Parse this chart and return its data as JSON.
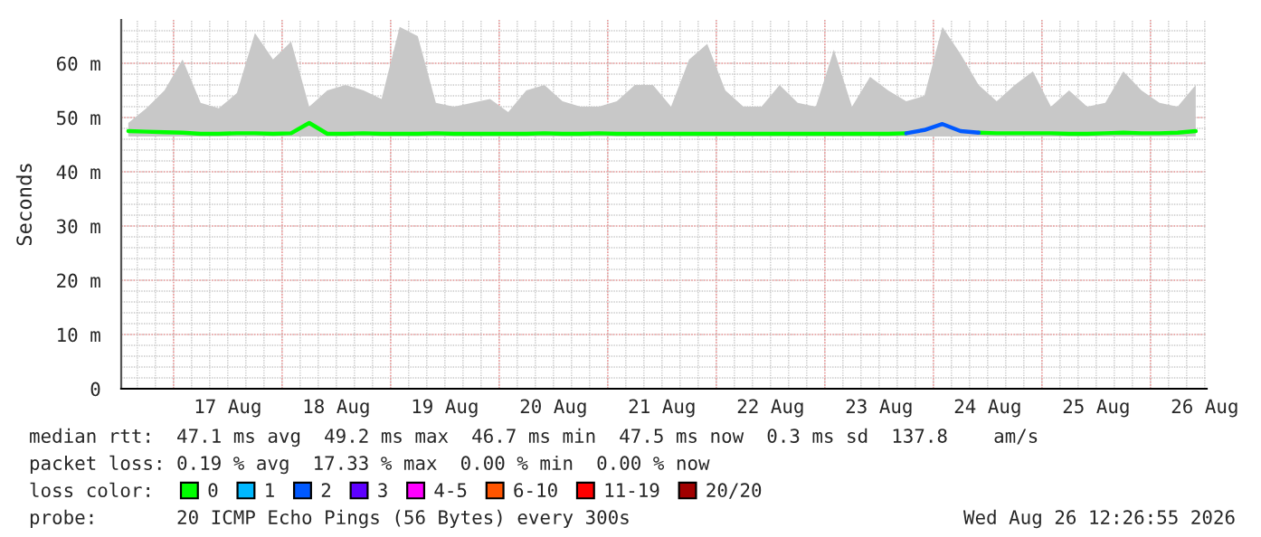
{
  "chart_data": {
    "type": "line",
    "ylabel": "Seconds",
    "x": [
      "2026-08-16T14:00",
      "2026-08-16T18:00",
      "2026-08-16T22:00",
      "2026-08-17T02:00",
      "2026-08-17T06:00",
      "2026-08-17T10:00",
      "2026-08-17T14:00",
      "2026-08-17T18:00",
      "2026-08-17T22:00",
      "2026-08-18T02:00",
      "2026-08-18T06:00",
      "2026-08-18T10:00",
      "2026-08-18T14:00",
      "2026-08-18T18:00",
      "2026-08-18T22:00",
      "2026-08-19T02:00",
      "2026-08-19T06:00",
      "2026-08-19T10:00",
      "2026-08-19T14:00",
      "2026-08-19T18:00",
      "2026-08-19T22:00",
      "2026-08-20T02:00",
      "2026-08-20T06:00",
      "2026-08-20T10:00",
      "2026-08-20T14:00",
      "2026-08-20T18:00",
      "2026-08-20T22:00",
      "2026-08-21T02:00",
      "2026-08-21T06:00",
      "2026-08-21T10:00",
      "2026-08-21T14:00",
      "2026-08-21T18:00",
      "2026-08-21T22:00",
      "2026-08-22T02:00",
      "2026-08-22T06:00",
      "2026-08-22T10:00",
      "2026-08-22T14:00",
      "2026-08-22T18:00",
      "2026-08-22T22:00",
      "2026-08-23T02:00",
      "2026-08-23T06:00",
      "2026-08-23T10:00",
      "2026-08-23T14:00",
      "2026-08-23T18:00",
      "2026-08-23T22:00",
      "2026-08-24T02:00",
      "2026-08-24T06:00",
      "2026-08-24T10:00",
      "2026-08-24T14:00",
      "2026-08-24T18:00",
      "2026-08-24T22:00",
      "2026-08-25T02:00",
      "2026-08-25T06:00",
      "2026-08-25T10:00",
      "2026-08-25T14:00",
      "2026-08-25T18:00",
      "2026-08-25T22:00",
      "2026-08-26T02:00",
      "2026-08-26T06:00",
      "2026-08-26T10:00"
    ],
    "series": [
      {
        "name": "0",
        "color": "#00ff00",
        "values": [
          47.5,
          47.4,
          47.3,
          47.2,
          47.0,
          47.0,
          47.1,
          47.1,
          47.0,
          47.1,
          49.0,
          47.0,
          47.0,
          47.1,
          47.0,
          47.0,
          47.0,
          47.1,
          47.0,
          47.0,
          47.0,
          47.0,
          47.0,
          47.1,
          47.0,
          47.0,
          47.1,
          47.0,
          47.0,
          47.0,
          47.0,
          47.0,
          47.0,
          47.0,
          47.0,
          47.0,
          47.0,
          47.0,
          47.0,
          47.0,
          47.0,
          47.0,
          47.0,
          47.1,
          null,
          null,
          null,
          47.2,
          47.1,
          47.1,
          47.1,
          47.1,
          47.0,
          47.0,
          47.1,
          47.2,
          47.1,
          47.1,
          47.2,
          47.5
        ],
        "lower": [
          46.5,
          46.5,
          46.5,
          46.5,
          46.5,
          46.5,
          46.5,
          46.5,
          46.5,
          46.5,
          46.5,
          46.5,
          46.5,
          46.5,
          46.5,
          46.5,
          46.5,
          46.5,
          46.5,
          46.5,
          46.5,
          46.5,
          46.5,
          46.5,
          46.5,
          46.5,
          46.5,
          46.5,
          46.5,
          46.5,
          46.5,
          46.5,
          46.5,
          46.5,
          46.5,
          46.5,
          46.5,
          46.5,
          46.5,
          46.5,
          46.5,
          46.5,
          46.5,
          46.5,
          46.5,
          46.5,
          46.5,
          46.5,
          46.5,
          46.5,
          46.5,
          46.5,
          46.5,
          46.5,
          46.5,
          46.5,
          46.5,
          46.5,
          46.5,
          46.5
        ],
        "upper": [
          49,
          51.7,
          55,
          60.7,
          52.7,
          51.7,
          54.5,
          65.6,
          60.7,
          64,
          52,
          55,
          56,
          55,
          53.4,
          66.7,
          65,
          52.7,
          52,
          52.7,
          53.4,
          51,
          55,
          56,
          53,
          52,
          52,
          53,
          56,
          56,
          52,
          60.7,
          63.6,
          55,
          52,
          52,
          56,
          52.7,
          52,
          62.5,
          52,
          57.5,
          55,
          53,
          54,
          66.7,
          61.7,
          56,
          53,
          56,
          58.5,
          52,
          55,
          52,
          52.7,
          58.5,
          55,
          52.7,
          52,
          56
        ]
      },
      {
        "name": "1",
        "color": "#00b8ff",
        "values": [
          null,
          null,
          null,
          null,
          null,
          null,
          null,
          null,
          null,
          null,
          null,
          null,
          null,
          null,
          null,
          null,
          null,
          null,
          null,
          null,
          null,
          null,
          null,
          null,
          null,
          null,
          null,
          null,
          null,
          null,
          null,
          null,
          null,
          null,
          null,
          null,
          null,
          null,
          null,
          null,
          null,
          null,
          null,
          null,
          null,
          null,
          null,
          null,
          null,
          null,
          null,
          null,
          null,
          null,
          null,
          null,
          null,
          null,
          null,
          null
        ]
      },
      {
        "name": "2",
        "color": "#0059ff",
        "values": [
          null,
          null,
          null,
          null,
          null,
          null,
          null,
          null,
          null,
          null,
          null,
          null,
          null,
          null,
          null,
          null,
          null,
          null,
          null,
          null,
          null,
          null,
          null,
          null,
          null,
          null,
          null,
          null,
          null,
          null,
          null,
          null,
          null,
          null,
          null,
          null,
          null,
          null,
          null,
          null,
          null,
          null,
          null,
          47.1,
          47.7,
          48.8,
          47.5,
          47.2,
          null,
          null,
          null,
          null,
          null,
          null,
          null,
          null,
          null,
          null,
          null,
          null
        ]
      },
      {
        "name": "3",
        "color": "#5e00ff",
        "values": [
          null,
          null,
          null,
          null,
          null,
          null,
          null,
          null,
          null,
          null,
          null,
          null,
          null,
          null,
          null,
          null,
          null,
          null,
          null,
          null,
          null,
          null,
          null,
          null,
          null,
          null,
          null,
          null,
          null,
          null,
          null,
          null,
          null,
          null,
          null,
          null,
          null,
          null,
          null,
          null,
          null,
          null,
          null,
          null,
          null,
          null,
          null,
          null,
          null,
          null,
          null,
          null,
          null,
          null,
          null,
          null,
          null,
          null,
          null,
          null
        ]
      },
      {
        "name": "4-5",
        "color": "#ff00ff",
        "values": [
          null,
          null,
          null,
          null,
          null,
          null,
          null,
          null,
          null,
          null,
          null,
          null,
          null,
          null,
          null,
          null,
          null,
          null,
          null,
          null,
          null,
          null,
          null,
          null,
          null,
          null,
          null,
          null,
          null,
          null,
          null,
          null,
          null,
          null,
          null,
          null,
          null,
          null,
          null,
          null,
          null,
          null,
          null,
          null,
          null,
          null,
          null,
          null,
          null,
          null,
          null,
          null,
          null,
          null,
          null,
          null,
          null,
          null,
          null,
          null
        ]
      },
      {
        "name": "6-10",
        "color": "#ff5500",
        "values": [
          null,
          null,
          null,
          null,
          null,
          null,
          null,
          null,
          null,
          null,
          null,
          null,
          null,
          null,
          null,
          null,
          null,
          null,
          null,
          null,
          null,
          null,
          null,
          null,
          null,
          null,
          null,
          null,
          null,
          null,
          null,
          null,
          null,
          null,
          null,
          null,
          null,
          null,
          null,
          null,
          null,
          null,
          null,
          null,
          null,
          null,
          null,
          null,
          null,
          null,
          null,
          null,
          null,
          null,
          null,
          null,
          null,
          null,
          null,
          null
        ]
      },
      {
        "name": "11-19",
        "color": "#ff0000",
        "values": [
          null,
          null,
          null,
          null,
          null,
          null,
          null,
          null,
          null,
          null,
          null,
          null,
          null,
          null,
          null,
          null,
          null,
          null,
          null,
          null,
          null,
          null,
          null,
          null,
          null,
          null,
          null,
          null,
          null,
          null,
          null,
          null,
          null,
          null,
          null,
          null,
          null,
          null,
          null,
          null,
          null,
          null,
          null,
          null,
          null,
          null,
          null,
          null,
          null,
          null,
          null,
          null,
          null,
          null,
          null,
          null,
          null,
          null,
          null,
          null
        ]
      },
      {
        "name": "20/20",
        "color": "#a10000",
        "values": [
          null,
          null,
          null,
          null,
          null,
          null,
          null,
          null,
          null,
          null,
          null,
          null,
          null,
          null,
          null,
          null,
          null,
          null,
          null,
          null,
          null,
          null,
          null,
          null,
          null,
          null,
          null,
          null,
          null,
          null,
          null,
          null,
          null,
          null,
          null,
          null,
          null,
          null,
          null,
          null,
          null,
          null,
          null,
          null,
          null,
          null,
          null,
          null,
          null,
          null,
          null,
          null,
          null,
          null,
          null,
          null,
          null,
          null,
          null,
          null
        ]
      }
    ],
    "xlim": [
      "2026-08-16T12:26",
      "2026-08-26T12:26"
    ],
    "xticks": [
      {
        "value": "2026-08-17T12:00",
        "label": "17 Aug"
      },
      {
        "value": "2026-08-18T12:00",
        "label": "18 Aug"
      },
      {
        "value": "2026-08-19T12:00",
        "label": "19 Aug"
      },
      {
        "value": "2026-08-20T12:00",
        "label": "20 Aug"
      },
      {
        "value": "2026-08-21T12:00",
        "label": "21 Aug"
      },
      {
        "value": "2026-08-22T12:00",
        "label": "22 Aug"
      },
      {
        "value": "2026-08-23T12:00",
        "label": "23 Aug"
      },
      {
        "value": "2026-08-24T12:00",
        "label": "24 Aug"
      },
      {
        "value": "2026-08-25T12:00",
        "label": "25 Aug"
      },
      {
        "value": "2026-08-26T12:00",
        "label": "26 Aug"
      }
    ],
    "ylim": [
      0,
      68
    ],
    "yticks": [
      0,
      {
        "value": 10,
        "label": "10 m"
      },
      {
        "value": 20,
        "label": "20 m"
      },
      {
        "value": 30,
        "label": "30 m"
      },
      {
        "value": 40,
        "label": "40 m"
      },
      {
        "value": 50,
        "label": "50 m"
      },
      {
        "value": 60,
        "label": "60 m"
      }
    ],
    "grid": true,
    "legend": "bottom",
    "legend_title": "loss color:",
    "annotations": [
      "median rtt:  47.1 ms avg  49.2 ms max  46.7 ms min  47.5 ms now  0.3 ms sd  137.8    am/s",
      "packet loss: 0.19 % avg  17.33 % max  0.00 % min  0.00 % now",
      "probe:       20 ICMP Echo Pings (56 Bytes) every 300s",
      "Wed Aug 26 12:26:55 2026"
    ]
  }
}
